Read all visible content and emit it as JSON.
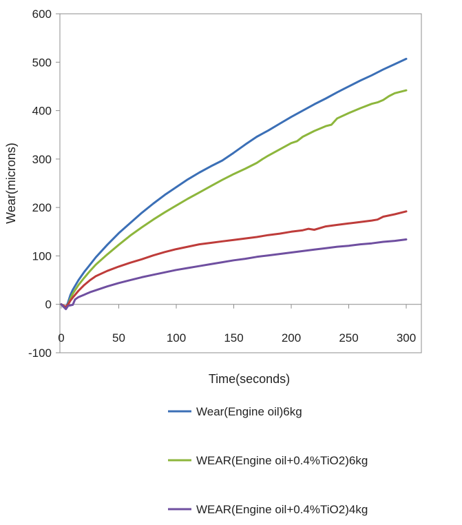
{
  "chart_data": {
    "type": "line",
    "xlabel": "Time(seconds)",
    "ylabel": "Wear(microns)",
    "xlim": [
      0,
      300
    ],
    "ylim": [
      -100,
      600
    ],
    "xticks": [
      0,
      50,
      100,
      150,
      200,
      250,
      300
    ],
    "yticks": [
      -100,
      0,
      100,
      200,
      300,
      400,
      500,
      600
    ],
    "grid": false,
    "legend_placement": "bottom",
    "series": [
      {
        "name": "Wear(Engine oil)6kg",
        "color": "#3b6fb6",
        "in_legend": true,
        "x": [
          0,
          2,
          4,
          6,
          8,
          10,
          15,
          20,
          25,
          30,
          40,
          50,
          60,
          70,
          80,
          90,
          100,
          110,
          120,
          130,
          140,
          150,
          160,
          170,
          180,
          190,
          200,
          210,
          220,
          230,
          240,
          250,
          260,
          270,
          280,
          290,
          300
        ],
        "y": [
          0,
          -5,
          -8,
          5,
          20,
          30,
          50,
          67,
          82,
          97,
          123,
          147,
          168,
          189,
          208,
          226,
          242,
          258,
          272,
          285,
          297,
          313,
          330,
          346,
          359,
          373,
          387,
          400,
          413,
          425,
          438,
          450,
          462,
          473,
          485,
          496,
          507
        ]
      },
      {
        "name": "WEAR(Engine oil+0.4%TiO2)6kg",
        "color": "#8db63c",
        "in_legend": true,
        "x": [
          0,
          2,
          4,
          6,
          8,
          10,
          15,
          20,
          25,
          30,
          40,
          50,
          60,
          70,
          80,
          90,
          100,
          110,
          120,
          130,
          140,
          150,
          160,
          170,
          175,
          180,
          190,
          200,
          205,
          210,
          220,
          230,
          235,
          240,
          250,
          260,
          270,
          275,
          280,
          285,
          290,
          300
        ],
        "y": [
          0,
          -5,
          -8,
          0,
          12,
          22,
          40,
          55,
          69,
          82,
          103,
          123,
          142,
          159,
          175,
          190,
          204,
          218,
          231,
          244,
          257,
          269,
          280,
          292,
          300,
          307,
          320,
          333,
          337,
          346,
          358,
          368,
          371,
          384,
          395,
          405,
          414,
          417,
          422,
          430,
          436,
          442
        ]
      },
      {
        "name": "",
        "color": "#be3c3a",
        "in_legend": false,
        "x": [
          0,
          2,
          4,
          6,
          8,
          10,
          15,
          20,
          25,
          30,
          40,
          50,
          60,
          70,
          80,
          90,
          100,
          110,
          120,
          130,
          140,
          150,
          160,
          170,
          180,
          190,
          200,
          210,
          215,
          220,
          230,
          240,
          250,
          260,
          270,
          275,
          280,
          290,
          300
        ],
        "y": [
          0,
          -3,
          -5,
          0,
          8,
          14,
          28,
          40,
          50,
          58,
          69,
          78,
          86,
          93,
          101,
          108,
          114,
          119,
          124,
          127,
          130,
          133,
          136,
          139,
          143,
          146,
          150,
          153,
          156,
          154,
          161,
          164,
          167,
          170,
          173,
          175,
          181,
          186,
          192
        ]
      },
      {
        "name": "WEAR(Engine oil+0.4%TiO2)4kg",
        "color": "#6f4fa0",
        "in_legend": true,
        "x": [
          0,
          2,
          4,
          6,
          8,
          10,
          12,
          15,
          20,
          25,
          30,
          40,
          50,
          60,
          70,
          80,
          90,
          100,
          110,
          120,
          130,
          140,
          150,
          160,
          170,
          180,
          190,
          200,
          210,
          220,
          230,
          240,
          250,
          260,
          270,
          280,
          290,
          300
        ],
        "y": [
          0,
          -5,
          -10,
          -3,
          -2,
          -1,
          10,
          15,
          20,
          25,
          29,
          37,
          44,
          50,
          56,
          61,
          66,
          71,
          75,
          79,
          83,
          87,
          91,
          94,
          98,
          101,
          104,
          107,
          110,
          113,
          116,
          119,
          121,
          124,
          126,
          129,
          131,
          134
        ]
      }
    ]
  }
}
